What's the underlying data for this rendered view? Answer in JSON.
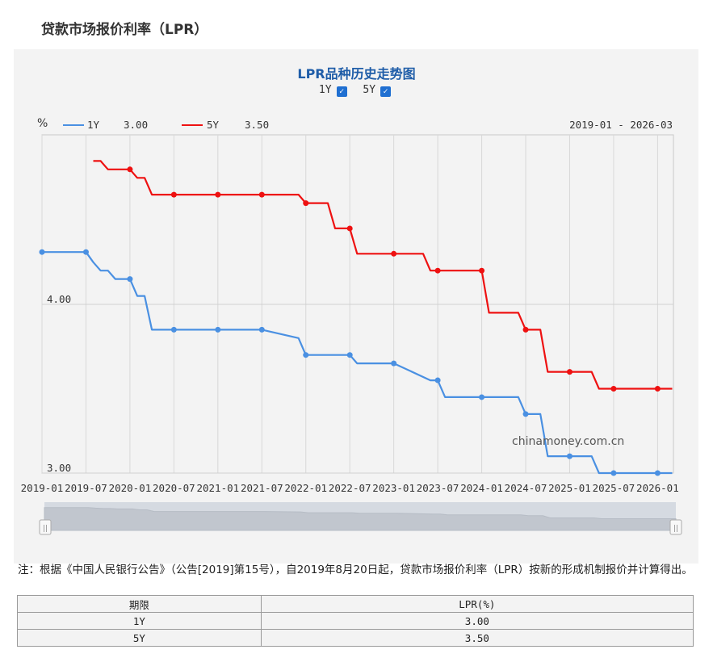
{
  "page": {
    "title": "贷款市场报价利率（LPR）"
  },
  "chart_header": {
    "title": "LPR品种历史走势图",
    "toggles": [
      {
        "label": "1Y",
        "checked": true
      },
      {
        "label": "5Y",
        "checked": true
      }
    ],
    "y_unit": "%",
    "legend": [
      {
        "name": "1Y",
        "value": "3.00",
        "color": "#4a90e2"
      },
      {
        "name": "5Y",
        "value": "3.50",
        "color": "#ee1111"
      }
    ],
    "date_range": "2019-01 - 2026-03",
    "watermark": "chinamoney.com.cn"
  },
  "chart_data": {
    "type": "line",
    "y_tick_labels": [
      "4.00",
      "3.00"
    ],
    "x_tick_labels": [
      "2019-01",
      "2019-07",
      "2020-01",
      "2020-07",
      "2021-01",
      "2021-07",
      "2022-01",
      "2022-07",
      "2023-01",
      "2023-07",
      "2024-01",
      "2024-07",
      "2025-01",
      "2025-07",
      "2026-01"
    ],
    "x_range": [
      "2019-01",
      "2026-03"
    ],
    "grid": true,
    "legend_position": "top-left",
    "series": [
      {
        "name": "1Y",
        "color": "#4a90e2",
        "points": [
          [
            "2019-01",
            4.31
          ],
          [
            "2019-07",
            4.31
          ],
          [
            "2019-08",
            4.25
          ],
          [
            "2019-09",
            4.2
          ],
          [
            "2019-10",
            4.2
          ],
          [
            "2019-11",
            4.15
          ],
          [
            "2019-12",
            4.15
          ],
          [
            "2020-01",
            4.15
          ],
          [
            "2020-02",
            4.05
          ],
          [
            "2020-03",
            4.05
          ],
          [
            "2020-04",
            3.85
          ],
          [
            "2020-07",
            3.85
          ],
          [
            "2021-01",
            3.85
          ],
          [
            "2021-07",
            3.85
          ],
          [
            "2021-12",
            3.8
          ],
          [
            "2022-01",
            3.7
          ],
          [
            "2022-07",
            3.7
          ],
          [
            "2022-08",
            3.65
          ],
          [
            "2023-01",
            3.65
          ],
          [
            "2023-06",
            3.55
          ],
          [
            "2023-07",
            3.55
          ],
          [
            "2023-08",
            3.45
          ],
          [
            "2024-01",
            3.45
          ],
          [
            "2024-06",
            3.45
          ],
          [
            "2024-07",
            3.35
          ],
          [
            "2024-09",
            3.35
          ],
          [
            "2024-10",
            3.1
          ],
          [
            "2025-01",
            3.1
          ],
          [
            "2025-04",
            3.1
          ],
          [
            "2025-05",
            3.0
          ],
          [
            "2025-07",
            3.0
          ],
          [
            "2026-01",
            3.0
          ],
          [
            "2026-03",
            3.0
          ]
        ],
        "markers": [
          "2019-01",
          "2019-07",
          "2020-01",
          "2020-07",
          "2021-01",
          "2021-07",
          "2022-01",
          "2022-07",
          "2023-01",
          "2023-07",
          "2024-01",
          "2024-07",
          "2025-01",
          "2025-07",
          "2026-01"
        ]
      },
      {
        "name": "5Y",
        "color": "#ee1111",
        "points": [
          [
            "2019-08",
            4.85
          ],
          [
            "2019-09",
            4.85
          ],
          [
            "2019-10",
            4.8
          ],
          [
            "2019-11",
            4.8
          ],
          [
            "2019-12",
            4.8
          ],
          [
            "2020-01",
            4.8
          ],
          [
            "2020-02",
            4.75
          ],
          [
            "2020-03",
            4.75
          ],
          [
            "2020-04",
            4.65
          ],
          [
            "2020-07",
            4.65
          ],
          [
            "2021-01",
            4.65
          ],
          [
            "2021-07",
            4.65
          ],
          [
            "2021-12",
            4.65
          ],
          [
            "2022-01",
            4.6
          ],
          [
            "2022-04",
            4.6
          ],
          [
            "2022-05",
            4.45
          ],
          [
            "2022-07",
            4.45
          ],
          [
            "2022-08",
            4.3
          ],
          [
            "2023-01",
            4.3
          ],
          [
            "2023-05",
            4.3
          ],
          [
            "2023-06",
            4.2
          ],
          [
            "2023-07",
            4.2
          ],
          [
            "2024-01",
            4.2
          ],
          [
            "2024-02",
            3.95
          ],
          [
            "2024-06",
            3.95
          ],
          [
            "2024-07",
            3.85
          ],
          [
            "2024-09",
            3.85
          ],
          [
            "2024-10",
            3.6
          ],
          [
            "2025-01",
            3.6
          ],
          [
            "2025-04",
            3.6
          ],
          [
            "2025-05",
            3.5
          ],
          [
            "2025-07",
            3.5
          ],
          [
            "2026-01",
            3.5
          ],
          [
            "2026-03",
            3.5
          ]
        ],
        "markers": [
          "2020-01",
          "2020-07",
          "2021-01",
          "2021-07",
          "2022-01",
          "2022-07",
          "2023-01",
          "2023-07",
          "2024-01",
          "2024-07",
          "2025-01",
          "2025-07",
          "2026-01"
        ]
      }
    ],
    "navigator": {
      "handle_left": "||",
      "handle_right": "||"
    }
  },
  "note": "注：根据《中国人民银行公告》（公告[2019]第15号），自2019年8月20日起，贷款市场报价利率（LPR）按新的形成机制报价并计算得出。",
  "table": {
    "headers": [
      "期限",
      "LPR(%)"
    ],
    "rows": [
      [
        "1Y",
        "3.00"
      ],
      [
        "5Y",
        "3.50"
      ]
    ]
  }
}
